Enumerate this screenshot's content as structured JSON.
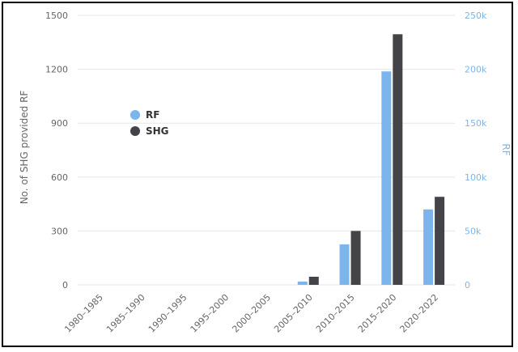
{
  "chart_data": {
    "type": "bar",
    "categories": [
      "1980–1985",
      "1985–1990",
      "1990–1995",
      "1995–2000",
      "2000–2005",
      "2005–2010",
      "2010–2015",
      "2015–2020",
      "2020–2022"
    ],
    "series": [
      {
        "name": "RF",
        "axis": "right",
        "color": "#7cb5ec",
        "values": [
          0,
          0,
          0,
          0,
          0,
          3000,
          37500,
          198000,
          70000
        ]
      },
      {
        "name": "SHG",
        "axis": "left",
        "color": "#434348",
        "values": [
          0,
          0,
          0,
          0,
          0,
          45,
          300,
          1395,
          490
        ]
      }
    ],
    "ylabel": "No. of SHG provided RF",
    "ylabel_right": "RF",
    "ylim": [
      0,
      1500
    ],
    "ylim_right": [
      0,
      250000
    ],
    "yticks": [
      "0",
      "300",
      "600",
      "900",
      "1200",
      "1500"
    ],
    "yticks_right": [
      "0",
      "50k",
      "100k",
      "150k",
      "200k",
      "250k"
    ],
    "grid": true,
    "legend_position": "left, upper-middle",
    "colors": {
      "left_axis_text": "#666666",
      "right_axis_text": "#7cb5ec",
      "grid": "#e6e6e6"
    }
  }
}
